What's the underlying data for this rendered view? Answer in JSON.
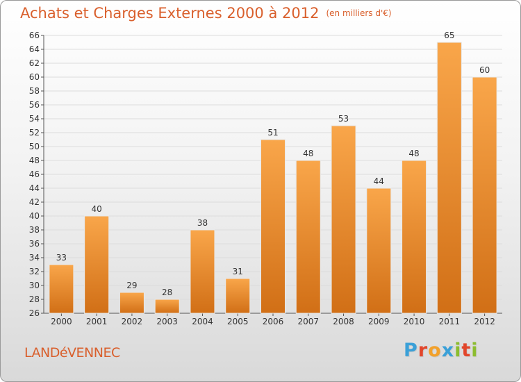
{
  "header": {
    "title": "Achats et Charges Externes 2000 à 2012",
    "unit": "(en milliers d'€)"
  },
  "footer": {
    "town": "LANDéVENNEC",
    "brand_letters": [
      "P",
      "r",
      "o",
      "x",
      "i",
      "t",
      "i"
    ]
  },
  "colors": {
    "accent": "#d95f2c",
    "bar_top": "#f9a64a",
    "bar_bottom": "#d16f16",
    "brand": [
      "#3aa0d8",
      "#e2462b",
      "#f2a12b",
      "#3aa0d8",
      "#8cbd2f",
      "#e2462b",
      "#8cbd2f"
    ]
  },
  "chart_data": {
    "type": "bar",
    "title": "Achats et Charges Externes 2000 à 2012",
    "categories": [
      "2000",
      "2001",
      "2002",
      "2003",
      "2004",
      "2005",
      "2006",
      "2007",
      "2008",
      "2009",
      "2010",
      "2011",
      "2012"
    ],
    "values": [
      33,
      40,
      29,
      28,
      38,
      31,
      51,
      48,
      53,
      44,
      48,
      65,
      60
    ],
    "ylim": [
      26,
      66
    ],
    "yticks": [
      26,
      28,
      30,
      32,
      34,
      36,
      38,
      40,
      42,
      44,
      46,
      48,
      50,
      52,
      54,
      56,
      58,
      60,
      62,
      64,
      66
    ],
    "grid": true,
    "xlabel": "",
    "ylabel": ""
  }
}
